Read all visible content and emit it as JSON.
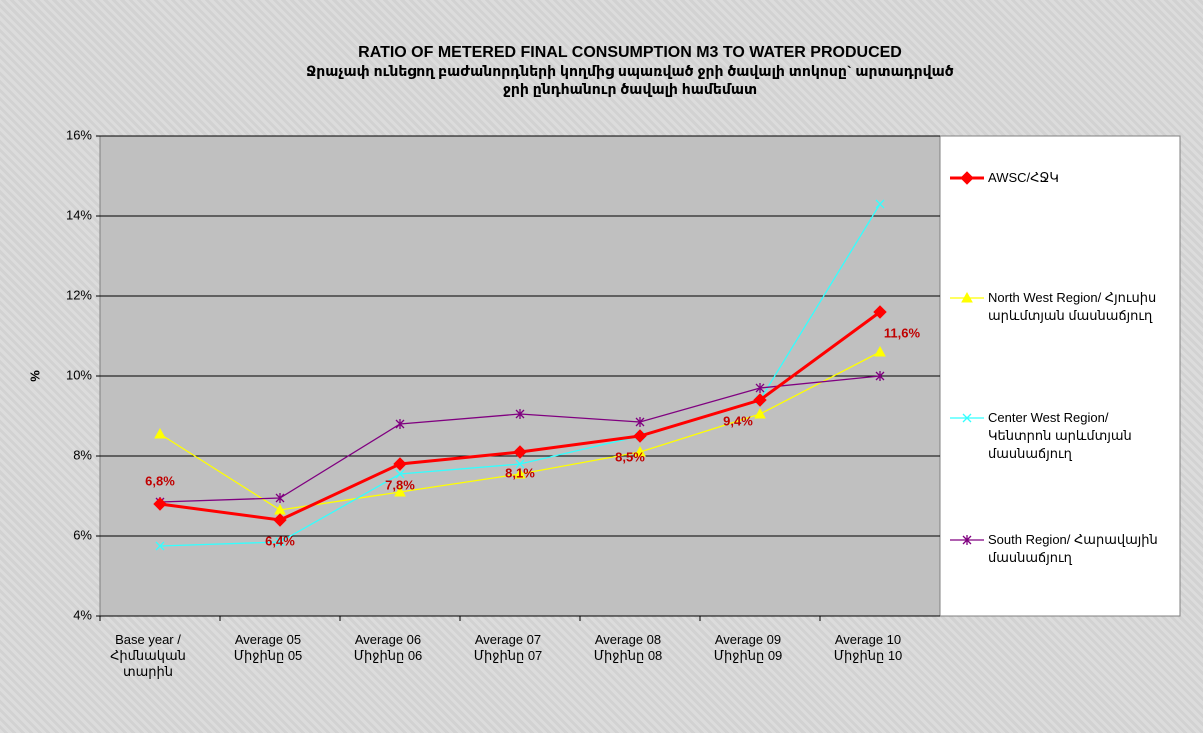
{
  "chart_data": {
    "type": "line",
    "title": "RATIO OF METERED FINAL CONSUMPTION M3 TO WATER PRODUCED",
    "subtitle": "Ջրաչափ ունեցող բաժանորդների կողմից սպառված ջրի ծավալի տոկոսը` արտադրված ջրի ընդհանուր ծավալի համեմատ",
    "ylabel": "%",
    "categories": [
      "Base year /\nՀիմնական\nտարին",
      "Average 05\nՄիջինը 05",
      "Average 06\nՄիջինը 06",
      "Average 07\nՄիջինը 07",
      "Average 08\nՄիջինը 08",
      "Average 09\nՄիջինը 09",
      "Average 10\nՄիջինը 10"
    ],
    "ylim": [
      4,
      16
    ],
    "yticks": [
      {
        "value": 4,
        "label": "4%"
      },
      {
        "value": 6,
        "label": "6%"
      },
      {
        "value": 8,
        "label": "8%"
      },
      {
        "value": 10,
        "label": "10%"
      },
      {
        "value": 12,
        "label": "12%"
      },
      {
        "value": 14,
        "label": "14%"
      },
      {
        "value": 16,
        "label": "16%"
      }
    ],
    "grid": true,
    "legend": "right",
    "series": [
      {
        "name": "AWSC/ՀՋԿ",
        "color": "#ff0000",
        "marker": "diamond",
        "values": [
          6.8,
          6.4,
          7.8,
          8.1,
          8.5,
          9.4,
          11.6
        ],
        "value_labels": [
          "6,8%",
          "6,4%",
          "7,8%",
          "8,1%",
          "8,5%",
          "9,4%",
          "11,6%"
        ]
      },
      {
        "name": "North West Region/ Հյուսիս արևմտյան մասնաճյուղ",
        "color": "#ffff00",
        "marker": "triangle",
        "values": [
          8.55,
          6.65,
          7.1,
          7.55,
          8.1,
          9.05,
          10.6
        ]
      },
      {
        "name": "Center West Region/ Կենտրոն արևմտյան մասնաճյուղ",
        "color": "#33ffff",
        "marker": "x",
        "values": [
          5.75,
          5.85,
          7.55,
          7.8,
          8.5,
          9.4,
          14.3
        ]
      },
      {
        "name": "South Region/ Հարավային մասնաճյուղ",
        "color": "#800080",
        "marker": "star",
        "values": [
          6.85,
          6.95,
          8.8,
          9.05,
          8.85,
          9.7,
          10.0
        ]
      }
    ]
  }
}
